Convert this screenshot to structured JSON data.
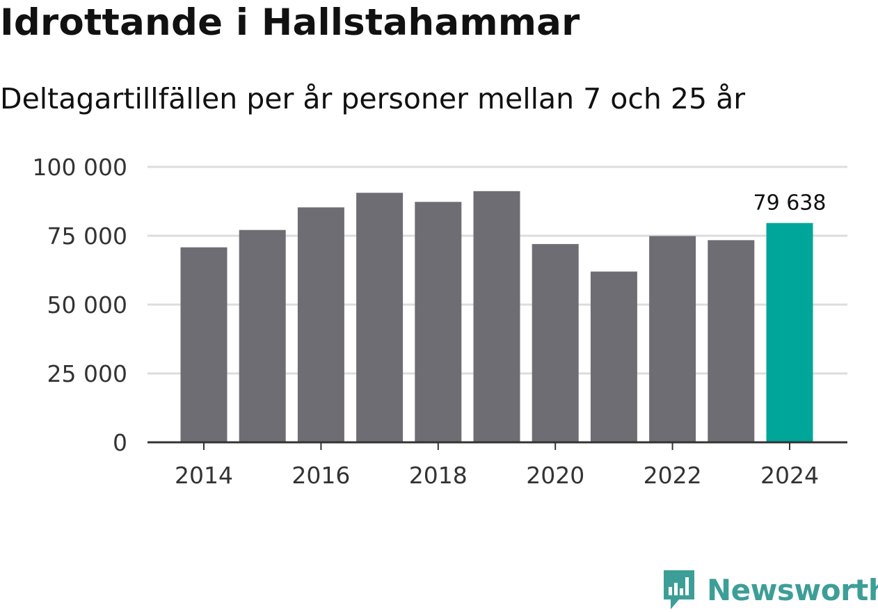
{
  "chart_data": {
    "type": "bar",
    "title": "Idrottande i Hallstahammar",
    "subtitle": "Deltagartillfällen per år personer mellan 7 och 25 år",
    "categories": [
      "2014",
      "2015",
      "2016",
      "2017",
      "2018",
      "2019",
      "2020",
      "2021",
      "2022",
      "2023",
      "2024"
    ],
    "values": [
      70800,
      77100,
      85300,
      90600,
      87300,
      91200,
      72000,
      62000,
      74900,
      73400,
      79638
    ],
    "ylim": [
      0,
      100000
    ],
    "yticks": [
      {
        "value": 0,
        "label": "0"
      },
      {
        "value": 25000,
        "label": "25 000"
      },
      {
        "value": 50000,
        "label": "50 000"
      },
      {
        "value": 75000,
        "label": "75 000"
      },
      {
        "value": 100000,
        "label": "100 000"
      }
    ],
    "xticks": [
      "2014",
      "2016",
      "2018",
      "2020",
      "2022",
      "2024"
    ],
    "highlight_index": 10,
    "data_label": "79 638",
    "colors": {
      "bar": "#6e6d73",
      "highlight": "#00a69a",
      "grid": "#dcdcdc",
      "axis": "#333333"
    },
    "grid": true,
    "xlabel": "",
    "ylabel": ""
  },
  "brand": {
    "name": "Newsworthy",
    "icon": "newsworthy-logo-icon",
    "color": "#3d9e97"
  }
}
